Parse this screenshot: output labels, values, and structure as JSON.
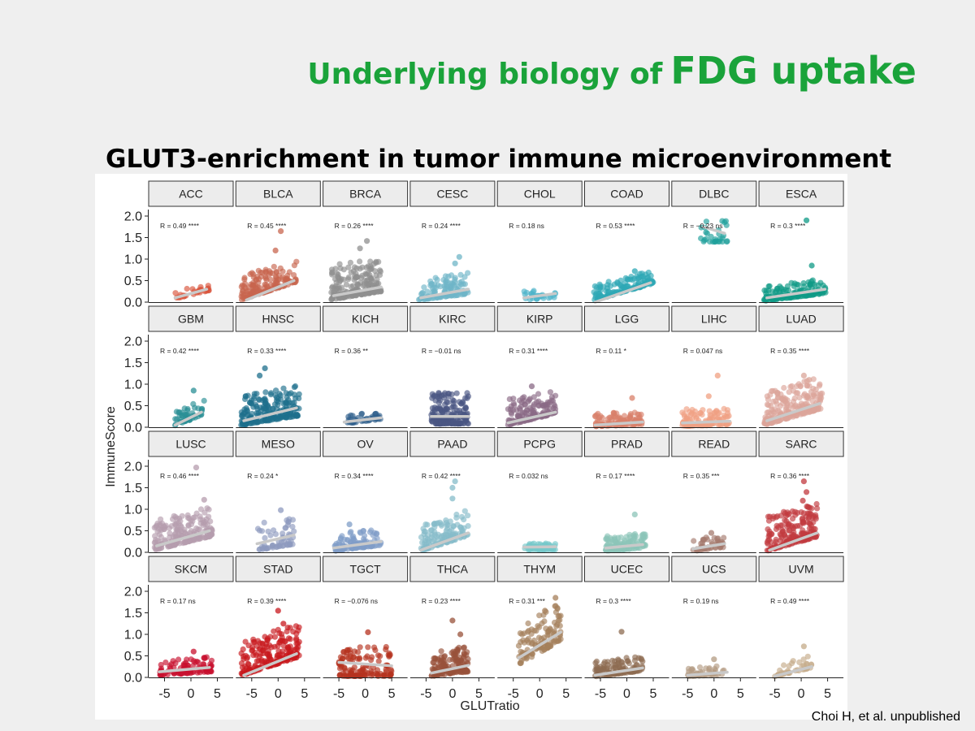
{
  "slide": {
    "title_prefix": "Underlying biology of",
    "title_emphasis": "FDG uptake",
    "subtitle": "GLUT3-enrichment in tumor immune microenvironment",
    "citation": "Choi H, et al. unpublished"
  },
  "chart_data": {
    "type": "scatter",
    "layout": "facet-grid 4x8",
    "xlabel": "GLUTratio",
    "ylabel": "ImmuneScore",
    "xlim": [
      -8,
      8
    ],
    "ylim": [
      0,
      2.0
    ],
    "xticks": [
      -5,
      0,
      5
    ],
    "yticks": [
      0.0,
      0.5,
      1.0,
      1.5,
      2.0
    ],
    "ytick_labels": [
      "0.0",
      "0.5",
      "1.0",
      "1.5",
      "2.0"
    ],
    "grid": false,
    "facets": [
      {
        "name": "ACC",
        "r": "R = 0.49 ****",
        "color": "#d9533a",
        "n": 30,
        "xmin": -3,
        "xmax": 3.5,
        "base": 0.08,
        "slope": 0.03,
        "spread": 0.18,
        "fit_x": [
          -3,
          3
        ],
        "fit_y": [
          0.1,
          0.3
        ]
      },
      {
        "name": "BLCA",
        "r": "R = 0.45 ****",
        "color": "#c8664f",
        "n": 160,
        "xmin": -7,
        "xmax": 3.5,
        "base": 0.05,
        "slope": 0.04,
        "spread": 0.55,
        "fit_x": [
          -6,
          3
        ],
        "fit_y": [
          0.05,
          0.5
        ],
        "extra": [
          [
            0.5,
            1.65
          ],
          [
            -0.5,
            1.2
          ]
        ]
      },
      {
        "name": "BRCA",
        "r": "R = 0.26 ****",
        "color": "#8f8f8f",
        "n": 200,
        "xmin": -6.5,
        "xmax": 3,
        "base": 0.06,
        "slope": 0.02,
        "spread": 0.8,
        "fit_x": [
          -6,
          3
        ],
        "fit_y": [
          0.15,
          0.35
        ],
        "extra": [
          [
            0.3,
            1.42
          ],
          [
            -1,
            1.25
          ]
        ]
      },
      {
        "name": "CESC",
        "r": "R = 0.24 ****",
        "color": "#6fb6c7",
        "n": 120,
        "xmin": -6.5,
        "xmax": 3,
        "base": 0.05,
        "slope": 0.015,
        "spread": 0.5,
        "fit_x": [
          -6,
          3
        ],
        "fit_y": [
          0.1,
          0.3
        ],
        "extra": [
          [
            1.3,
            1.05
          ],
          [
            0.5,
            0.9
          ]
        ]
      },
      {
        "name": "CHOL",
        "r": "R = 0.18 ns",
        "color": "#4fb4c9",
        "n": 30,
        "xmin": -3,
        "xmax": 3.5,
        "base": 0.05,
        "slope": 0.01,
        "spread": 0.2,
        "fit_x": [
          -3,
          3
        ],
        "fit_y": [
          0.1,
          0.2
        ]
      },
      {
        "name": "COAD",
        "r": "R = 0.53 ****",
        "color": "#2ea8b5",
        "n": 140,
        "xmin": -6.5,
        "xmax": 5,
        "base": 0.03,
        "slope": 0.035,
        "spread": 0.35,
        "fit_x": [
          -6,
          4.5
        ],
        "fit_y": [
          0.0,
          0.45
        ],
        "extra": [
          [
            1.5,
            0.72
          ],
          [
            3,
            0.6
          ]
        ]
      },
      {
        "name": "DLBC",
        "r": "R = −0.23 ns",
        "color": "#1f9f9b",
        "n": 30,
        "xmin": -2.5,
        "xmax": 2.5,
        "base": 1.4,
        "slope": 0.0,
        "spread": 0.55,
        "fit_x": [
          -2,
          2
        ],
        "fit_y": [
          1.75,
          1.6
        ]
      },
      {
        "name": "ESCA",
        "r": "R = 0.3 ****",
        "color": "#0f9a86",
        "n": 150,
        "xmin": -7,
        "xmax": 5,
        "base": 0.03,
        "slope": 0.015,
        "spread": 0.35,
        "fit_x": [
          -6.5,
          4.5
        ],
        "fit_y": [
          0.1,
          0.3
        ],
        "extra": [
          [
            1,
            1.9
          ],
          [
            2,
            0.85
          ]
        ]
      },
      {
        "name": "GBM",
        "r": "R = 0.42 ****",
        "color": "#2a8f95",
        "n": 50,
        "xmin": -3,
        "xmax": 2.5,
        "base": 0.03,
        "slope": 0.05,
        "spread": 0.4,
        "fit_x": [
          -3,
          2
        ],
        "fit_y": [
          0.05,
          0.35
        ],
        "extra": [
          [
            0.5,
            0.85
          ]
        ]
      },
      {
        "name": "HNSC",
        "r": "R = 0.33 ****",
        "color": "#1d6f8c",
        "n": 200,
        "xmin": -7,
        "xmax": 4,
        "base": 0.05,
        "slope": 0.02,
        "spread": 0.7,
        "fit_x": [
          -6.5,
          3.5
        ],
        "fit_y": [
          0.15,
          0.45
        ],
        "extra": [
          [
            -2.5,
            1.37
          ],
          [
            -3.5,
            1.2
          ]
        ]
      },
      {
        "name": "KICH",
        "r": "R = 0.36 **",
        "color": "#2f5f8c",
        "n": 40,
        "xmin": -4,
        "xmax": 3,
        "base": 0.08,
        "slope": 0.015,
        "spread": 0.2,
        "fit_x": [
          -4,
          3
        ],
        "fit_y": [
          0.12,
          0.22
        ]
      },
      {
        "name": "KIRC",
        "r": "R = −0.01 ns",
        "color": "#4a5682",
        "n": 180,
        "xmin": -4,
        "xmax": 3,
        "base": 0.08,
        "slope": 0.0,
        "spread": 0.75,
        "fit_x": [
          -4,
          3
        ],
        "fit_y": [
          0.25,
          0.25
        ]
      },
      {
        "name": "KIRP",
        "r": "R = 0.31 ****",
        "color": "#8a6a85",
        "n": 150,
        "xmin": -6,
        "xmax": 3,
        "base": 0.05,
        "slope": 0.03,
        "spread": 0.6,
        "fit_x": [
          -6,
          3
        ],
        "fit_y": [
          0.1,
          0.35
        ],
        "extra": [
          [
            -1.5,
            0.95
          ]
        ]
      },
      {
        "name": "LGG",
        "r": "R = 0.11 *",
        "color": "#d9806a",
        "n": 120,
        "xmin": -6,
        "xmax": 3,
        "base": 0.02,
        "slope": 0.005,
        "spread": 0.3,
        "fit_x": [
          -6,
          3
        ],
        "fit_y": [
          0.05,
          0.12
        ],
        "extra": [
          [
            1,
            0.68
          ]
        ]
      },
      {
        "name": "LIHC",
        "r": "R = 0.047 ns",
        "color": "#f0a082",
        "n": 120,
        "xmin": -6,
        "xmax": 3,
        "base": 0.02,
        "slope": 0.005,
        "spread": 0.4,
        "fit_x": [
          -6,
          3
        ],
        "fit_y": [
          0.1,
          0.14
        ],
        "extra": [
          [
            0.7,
            1.2
          ],
          [
            -1,
            0.72
          ]
        ]
      },
      {
        "name": "LUAD",
        "r": "R = 0.35 ****",
        "color": "#dba59a",
        "n": 220,
        "xmin": -7,
        "xmax": 4,
        "base": 0.05,
        "slope": 0.035,
        "spread": 0.75,
        "fit_x": [
          -6.5,
          3.5
        ],
        "fit_y": [
          0.15,
          0.55
        ],
        "extra": [
          [
            0.5,
            1.2
          ],
          [
            1.5,
            1.1
          ]
        ]
      },
      {
        "name": "LUSC",
        "r": "R = 0.46 ****",
        "color": "#b59cae",
        "n": 200,
        "xmin": -7,
        "xmax": 4,
        "base": 0.05,
        "slope": 0.03,
        "spread": 0.7,
        "fit_x": [
          -6.5,
          3.5
        ],
        "fit_y": [
          0.15,
          0.5
        ],
        "extra": [
          [
            1,
            1.97
          ],
          [
            2.5,
            1.22
          ]
        ]
      },
      {
        "name": "MESO",
        "r": "R = 0.24 *",
        "color": "#8d99bf",
        "n": 60,
        "xmin": -4,
        "xmax": 3,
        "base": 0.05,
        "slope": 0.02,
        "spread": 0.65,
        "fit_x": [
          -4,
          3
        ],
        "fit_y": [
          0.2,
          0.4
        ],
        "extra": [
          [
            0.5,
            0.98
          ]
        ]
      },
      {
        "name": "OV",
        "r": "R = 0.34 ****",
        "color": "#7f9dc7",
        "n": 120,
        "xmin": -6,
        "xmax": 3,
        "base": 0.03,
        "slope": 0.015,
        "spread": 0.4,
        "fit_x": [
          -6,
          3
        ],
        "fit_y": [
          0.1,
          0.25
        ],
        "extra": [
          [
            -3,
            0.65
          ]
        ]
      },
      {
        "name": "PAAD",
        "r": "R = 0.42 ****",
        "color": "#86bcc9",
        "n": 130,
        "xmin": -6,
        "xmax": 3,
        "base": 0.03,
        "slope": 0.04,
        "spread": 0.6,
        "fit_x": [
          -6,
          3
        ],
        "fit_y": [
          0.05,
          0.45
        ],
        "extra": [
          [
            0,
            1.5
          ],
          [
            0.5,
            1.65
          ],
          [
            0,
            1.25
          ]
        ]
      },
      {
        "name": "PCPG",
        "r": "R = 0.032 ns",
        "color": "#74c7c9",
        "n": 60,
        "xmin": -3,
        "xmax": 3,
        "base": 0.06,
        "slope": 0.0,
        "spread": 0.15,
        "fit_x": [
          -3,
          3
        ],
        "fit_y": [
          0.12,
          0.13
        ]
      },
      {
        "name": "PRAD",
        "r": "R = 0.17 ****",
        "color": "#8cc4b8",
        "n": 130,
        "xmin": -4,
        "xmax": 3.5,
        "base": 0.03,
        "slope": 0.01,
        "spread": 0.35,
        "fit_x": [
          -4,
          3
        ],
        "fit_y": [
          0.1,
          0.18
        ],
        "extra": [
          [
            1.5,
            0.88
          ]
        ]
      },
      {
        "name": "READ",
        "r": "R = 0.35 ***",
        "color": "#a47a6d",
        "n": 50,
        "xmin": -4,
        "xmax": 2,
        "base": 0.03,
        "slope": 0.015,
        "spread": 0.3,
        "fit_x": [
          -4,
          2
        ],
        "fit_y": [
          0.08,
          0.2
        ],
        "extra": [
          [
            -0.5,
            0.45
          ]
        ]
      },
      {
        "name": "SARC",
        "r": "R = 0.36 ****",
        "color": "#c23a3f",
        "n": 200,
        "xmin": -6.5,
        "xmax": 3,
        "base": 0.03,
        "slope": 0.035,
        "spread": 0.8,
        "fit_x": [
          -6,
          3
        ],
        "fit_y": [
          0.05,
          0.45
        ],
        "extra": [
          [
            0.5,
            1.65
          ],
          [
            1,
            1.4
          ],
          [
            0.3,
            1.2
          ]
        ]
      },
      {
        "name": "SKCM",
        "r": "R = 0.17 ns",
        "color": "#c8102e",
        "n": 90,
        "xmin": -6,
        "xmax": 4,
        "base": 0.05,
        "slope": 0.008,
        "spread": 0.35,
        "fit_x": [
          -6,
          3.5
        ],
        "fit_y": [
          0.13,
          0.23
        ],
        "extra": [
          [
            0.5,
            0.6
          ]
        ]
      },
      {
        "name": "STAD",
        "r": "R = 0.39 ****",
        "color": "#c8181d",
        "n": 200,
        "xmin": -7,
        "xmax": 4,
        "base": 0.04,
        "slope": 0.04,
        "spread": 0.8,
        "fit_x": [
          -6.5,
          3.5
        ],
        "fit_y": [
          0.05,
          0.55
        ],
        "extra": [
          [
            0,
            1.55
          ],
          [
            1,
            1.25
          ]
        ]
      },
      {
        "name": "TGCT",
        "r": "R = −0.076 ns",
        "color": "#b5321f",
        "n": 130,
        "xmin": -5,
        "xmax": 5,
        "base": 0.03,
        "slope": 0.0,
        "spread": 0.7,
        "fit_x": [
          -5,
          5
        ],
        "fit_y": [
          0.35,
          0.27
        ],
        "extra": [
          [
            0.5,
            1.05
          ]
        ]
      },
      {
        "name": "THCA",
        "r": "R = 0.23 ****",
        "color": "#98513a",
        "n": 150,
        "xmin": -4,
        "xmax": 3,
        "base": 0.03,
        "slope": 0.015,
        "spread": 0.6,
        "fit_x": [
          -4,
          3
        ],
        "fit_y": [
          0.1,
          0.28
        ],
        "extra": [
          [
            0,
            1.32
          ],
          [
            1.5,
            1.0
          ]
        ]
      },
      {
        "name": "THYM",
        "r": "R = 0.31 ***",
        "color": "#a57f5a",
        "n": 120,
        "xmin": -4,
        "xmax": 4,
        "base": 0.3,
        "slope": 0.07,
        "spread": 0.9,
        "fit_x": [
          -4,
          4
        ],
        "fit_y": [
          0.45,
          1.05
        ],
        "extra": [
          [
            3,
            1.85
          ],
          [
            1,
            1.55
          ]
        ]
      },
      {
        "name": "UCEC",
        "r": "R = 0.3 ****",
        "color": "#8d6c52",
        "n": 130,
        "xmin": -6,
        "xmax": 3,
        "base": 0.02,
        "slope": 0.015,
        "spread": 0.35,
        "fit_x": [
          -6,
          3
        ],
        "fit_y": [
          0.05,
          0.22
        ],
        "extra": [
          [
            -1,
            1.06
          ]
        ]
      },
      {
        "name": "UCS",
        "r": "R = 0.19 ns",
        "color": "#b39b82",
        "n": 45,
        "xmin": -5,
        "xmax": 2.5,
        "base": 0.02,
        "slope": 0.008,
        "spread": 0.22,
        "fit_x": [
          -5,
          2.5
        ],
        "fit_y": [
          0.05,
          0.12
        ],
        "extra": [
          [
            0,
            0.42
          ]
        ]
      },
      {
        "name": "UVM",
        "r": "R = 0.49 ****",
        "color": "#c4ab88",
        "n": 40,
        "xmin": -5,
        "xmax": 2,
        "base": 0.02,
        "slope": 0.03,
        "spread": 0.3,
        "fit_x": [
          -5,
          2
        ],
        "fit_y": [
          0.03,
          0.25
        ],
        "extra": [
          [
            0.5,
            0.72
          ]
        ]
      }
    ]
  }
}
